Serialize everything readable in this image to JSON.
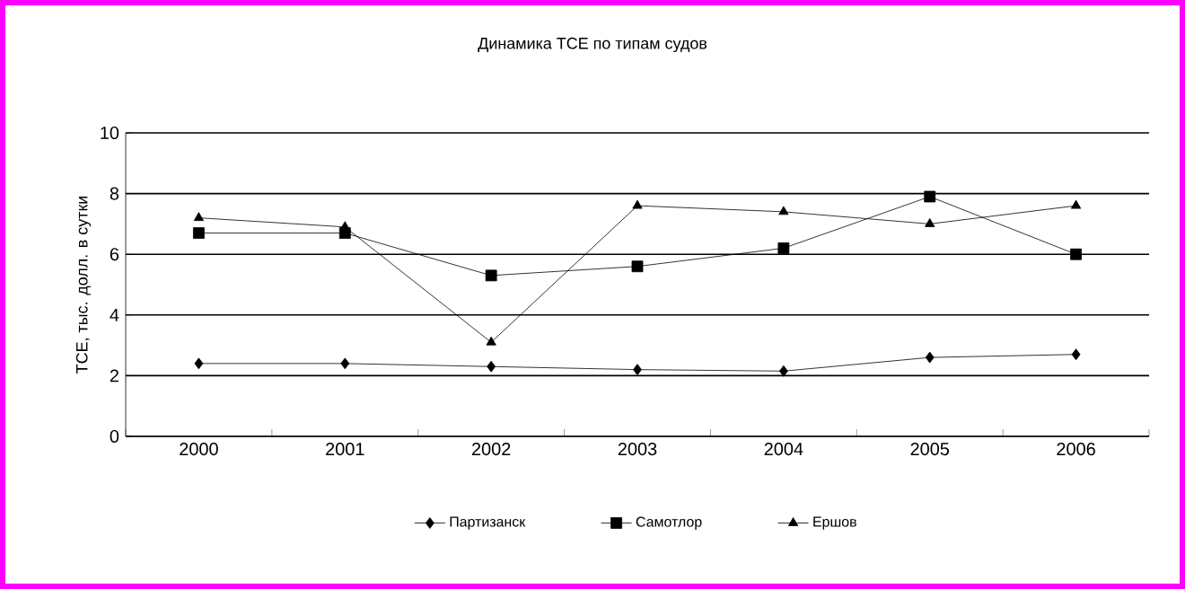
{
  "chart_data": {
    "type": "line",
    "title": "Динамика ТСЕ по типам судов",
    "ylabel": "ТСЕ, тыс. долл. в сутки",
    "categories": [
      "2000",
      "2001",
      "2002",
      "2003",
      "2004",
      "2005",
      "2006"
    ],
    "series": [
      {
        "name": "Партизанск",
        "color": "#000000",
        "marker": "diamond",
        "values": [
          2.4,
          2.4,
          2.3,
          2.2,
          2.15,
          2.6,
          2.7
        ]
      },
      {
        "name": "Самотлор",
        "color": "#000000",
        "marker": "square",
        "values": [
          6.7,
          6.7,
          5.3,
          5.6,
          6.2,
          7.9,
          6.0
        ]
      },
      {
        "name": "Ершов",
        "color": "#000000",
        "marker": "triangle",
        "values": [
          7.2,
          6.9,
          3.1,
          7.6,
          7.4,
          7.0,
          7.6
        ]
      }
    ],
    "ylim": [
      0,
      10
    ],
    "yticks": [
      0,
      2,
      4,
      6,
      8,
      10
    ],
    "grid": "y",
    "legend": "bottom",
    "line_style": "solid"
  }
}
